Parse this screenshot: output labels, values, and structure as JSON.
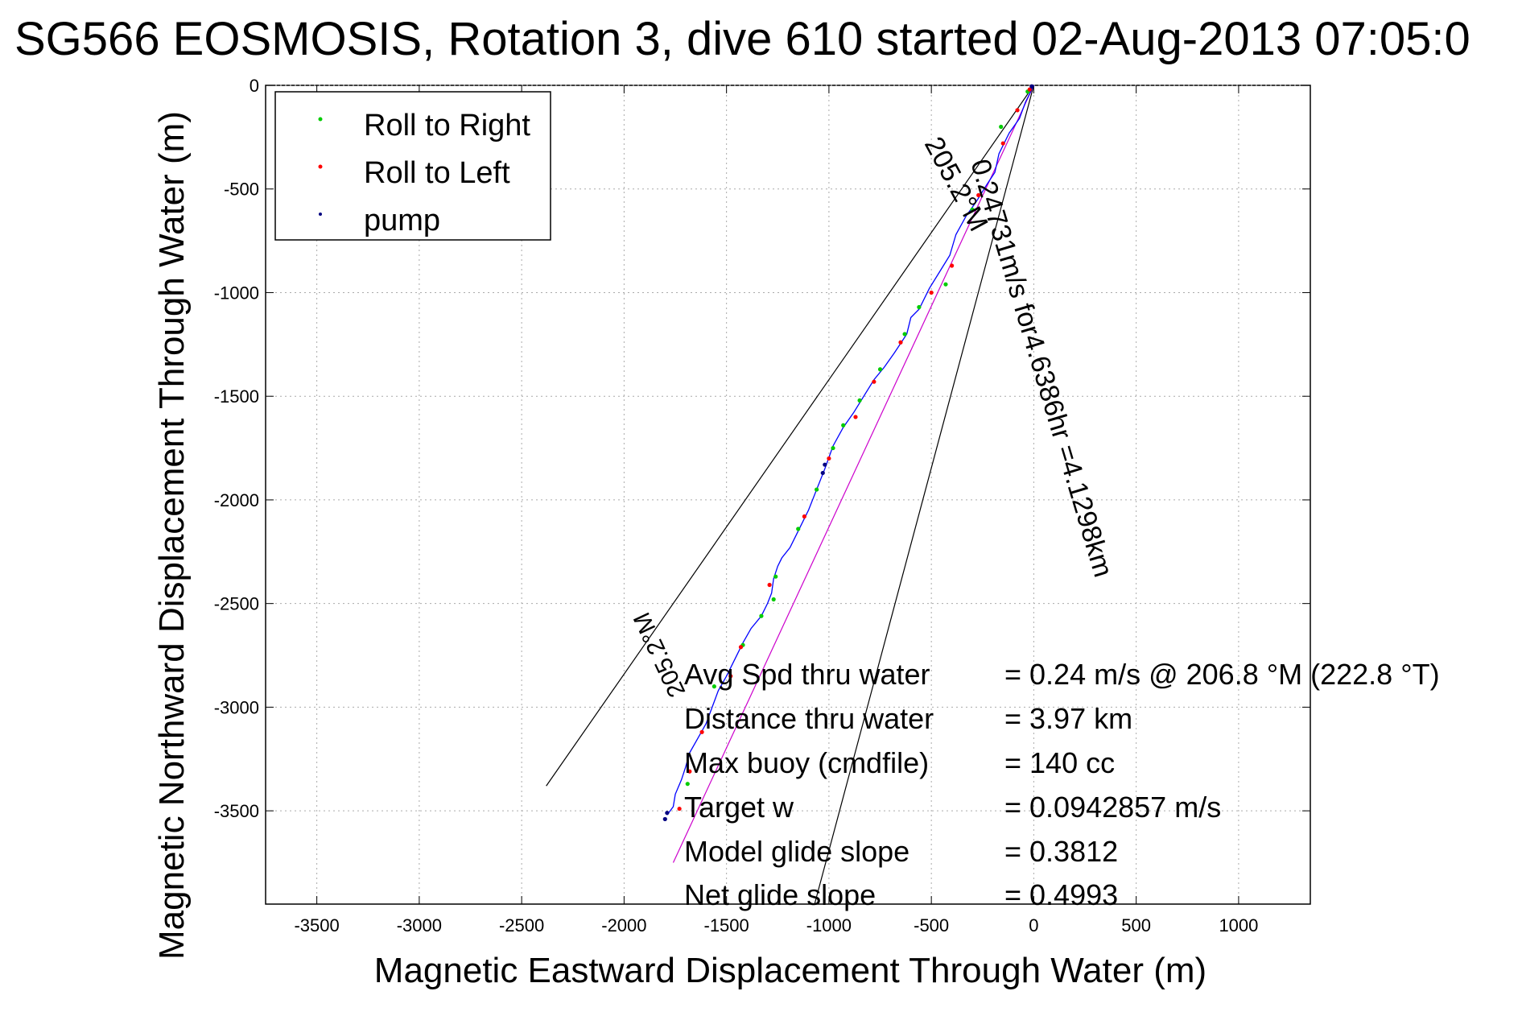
{
  "chart_data": {
    "type": "scatter",
    "title": "SG566 EOSMOSIS, Rotation 3, dive 610 started 02-Aug-2013 07:05:0",
    "xlabel": "Magnetic Eastward Displacement Through Water (m)",
    "ylabel": "Magnetic Northward Displacement Through Water (m)",
    "xlim": [
      -3750,
      1350
    ],
    "ylim": [
      -3950,
      0
    ],
    "xticks": [
      -3500,
      -3000,
      -2500,
      -2000,
      -1500,
      -1000,
      -500,
      0,
      500,
      1000
    ],
    "yticks": [
      0,
      -500,
      -1000,
      -1500,
      -2000,
      -2500,
      -3000,
      -3500
    ],
    "grid": true,
    "legend": {
      "placement": "top-left",
      "entries": [
        {
          "label": "Roll to Right",
          "color": "#00cc00"
        },
        {
          "label": "Roll to Left",
          "color": "#ff0000"
        },
        {
          "label": "pump",
          "color": "#000080"
        }
      ]
    },
    "series": [
      {
        "color": "#0000ff",
        "x": [
          0,
          -40,
          -70,
          -120,
          -170,
          -190,
          -230,
          -280,
          -330,
          -380,
          -410,
          -460,
          -510,
          -560,
          -600,
          -620,
          -680,
          -730,
          -780,
          -830,
          -880,
          -930,
          -980,
          -1020,
          -1060,
          -1100,
          -1150,
          -1190,
          -1230,
          -1250,
          -1270,
          -1280,
          -1300,
          -1330,
          -1380,
          -1420,
          -1460,
          -1500,
          -1540,
          -1570,
          -1600,
          -1640,
          -1680,
          -1700,
          -1720,
          -1750,
          -1760,
          -1790
        ],
        "y": [
          0,
          -80,
          -160,
          -230,
          -330,
          -420,
          -480,
          -560,
          -630,
          -720,
          -820,
          -900,
          -980,
          -1080,
          -1120,
          -1200,
          -1290,
          -1360,
          -1420,
          -1500,
          -1580,
          -1650,
          -1740,
          -1850,
          -1950,
          -2050,
          -2150,
          -2230,
          -2280,
          -2320,
          -2380,
          -2450,
          -2500,
          -2560,
          -2620,
          -2690,
          -2770,
          -2850,
          -2920,
          -3000,
          -3080,
          -3150,
          -3220,
          -3290,
          -3350,
          -3420,
          -3480,
          -3520
        ]
      },
      {
        "name": "Roll to Right",
        "color": "#00cc00",
        "x": [
          -30,
          -160,
          -300,
          -430,
          -560,
          -630,
          -750,
          -850,
          -930,
          -980,
          -1060,
          -1150,
          -1260,
          -1270,
          -1330,
          -1420,
          -1560,
          -1690
        ],
        "y": [
          -30,
          -200,
          -600,
          -960,
          -1070,
          -1200,
          -1370,
          -1520,
          -1640,
          -1750,
          -1950,
          -2140,
          -2370,
          -2480,
          -2560,
          -2700,
          -2900,
          -3370
        ]
      },
      {
        "name": "Roll to Left",
        "color": "#ff0000",
        "x": [
          -20,
          -80,
          -150,
          -270,
          -400,
          -500,
          -650,
          -780,
          -870,
          -1000,
          -1120,
          -1290,
          -1430,
          -1480,
          -1620,
          -1680,
          -1730
        ],
        "y": [
          -20,
          -120,
          -280,
          -530,
          -870,
          -1000,
          -1240,
          -1430,
          -1600,
          -1800,
          -2080,
          -2410,
          -2710,
          -2850,
          -3120,
          -3310,
          -3490
        ]
      },
      {
        "name": "pump",
        "color": "#000080",
        "x": [
          -10,
          -1020,
          -1030,
          -1790,
          -1800
        ],
        "y": [
          -5,
          -1830,
          -1870,
          -3510,
          -3540
        ]
      }
    ],
    "reference_lines": [
      {
        "color": "#000000",
        "x": [
          0,
          -2380
        ],
        "y": [
          0,
          -3380
        ]
      },
      {
        "color": "#000000",
        "x": [
          0,
          -1070
        ],
        "y": [
          0,
          -3950
        ]
      },
      {
        "color": "#cc00cc",
        "x": [
          0,
          -1760
        ],
        "y": [
          0,
          -3750
        ]
      }
    ],
    "annotations": {
      "heading_a": "205.2°M",
      "rate": "0.24731m/s for4.6386hr =4.1298km",
      "heading_b": "205.2°M",
      "stats": [
        {
          "label": "Avg Spd thru water",
          "value": "=  0.24 m/s @ 206.8 °M (222.8 °T)"
        },
        {
          "label": "Distance thru water",
          "value": "=  3.97 km"
        },
        {
          "label": "Max buoy (cmdfile)",
          "value": "= 140 cc"
        },
        {
          "label": "Target w",
          "value": "= 0.0942857 m/s"
        },
        {
          "label": "Model glide slope",
          "value": "= 0.3812"
        },
        {
          "label": "Net glide slope",
          "value": "= 0.4993"
        }
      ]
    }
  }
}
